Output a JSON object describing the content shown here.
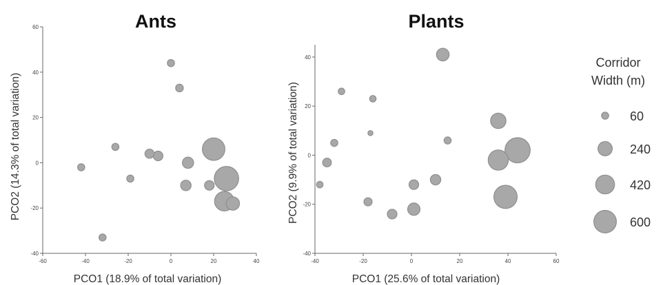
{
  "chart_data": [
    {
      "type": "scatter",
      "title": "Ants",
      "xlabel": "PCO1 (18.9% of total variation)",
      "ylabel": "PCO2 (14.3% of total variation)",
      "xlim": [
        -60,
        40
      ],
      "ylim": [
        -40,
        60
      ],
      "xticks": [
        "-60",
        "-40",
        "-20",
        "0",
        "20",
        "40"
      ],
      "yticks": [
        "-40",
        "-20",
        "0",
        "20",
        "40",
        "60"
      ],
      "points": [
        {
          "x": -42,
          "y": -2,
          "width": 60
        },
        {
          "x": -32,
          "y": -33,
          "width": 60
        },
        {
          "x": -26,
          "y": 7,
          "width": 60
        },
        {
          "x": -19,
          "y": -7,
          "width": 60
        },
        {
          "x": -10,
          "y": 4,
          "width": 100
        },
        {
          "x": -6,
          "y": 3,
          "width": 110
        },
        {
          "x": 0,
          "y": 44,
          "width": 60
        },
        {
          "x": 4,
          "y": 33,
          "width": 70
        },
        {
          "x": 7,
          "y": -10,
          "width": 130
        },
        {
          "x": 8,
          "y": 0,
          "width": 150
        },
        {
          "x": 18,
          "y": -10,
          "width": 110
        },
        {
          "x": 20,
          "y": 6,
          "width": 600
        },
        {
          "x": 26,
          "y": -7,
          "width": 700
        },
        {
          "x": 25,
          "y": -17,
          "width": 450
        },
        {
          "x": 29,
          "y": -18,
          "width": 210
        }
      ]
    },
    {
      "type": "scatter",
      "title": "Plants",
      "xlabel": "PCO1 (25.6% of total variation)",
      "ylabel": "PCO2 (9.9% of total variation)",
      "xlim": [
        -40,
        60
      ],
      "ylim": [
        -40,
        45
      ],
      "xticks": [
        "-40",
        "-20",
        "0",
        "20",
        "40",
        "60"
      ],
      "yticks": [
        "-40",
        "-20",
        "0",
        "20",
        "40"
      ],
      "points": [
        {
          "x": -38,
          "y": -12,
          "width": 50
        },
        {
          "x": -35,
          "y": -3,
          "width": 90
        },
        {
          "x": -32,
          "y": 5,
          "width": 60
        },
        {
          "x": -29,
          "y": 26,
          "width": 50
        },
        {
          "x": -16,
          "y": 23,
          "width": 50
        },
        {
          "x": -17,
          "y": 9,
          "width": 30
        },
        {
          "x": -18,
          "y": -19,
          "width": 80
        },
        {
          "x": -8,
          "y": -24,
          "width": 110
        },
        {
          "x": 1,
          "y": -12,
          "width": 110
        },
        {
          "x": 1,
          "y": -22,
          "width": 180
        },
        {
          "x": 10,
          "y": -10,
          "width": 130
        },
        {
          "x": 13,
          "y": 41,
          "width": 190
        },
        {
          "x": 15,
          "y": 6,
          "width": 60
        },
        {
          "x": 36,
          "y": 14,
          "width": 280
        },
        {
          "x": 36,
          "y": -2,
          "width": 480
        },
        {
          "x": 44,
          "y": 2,
          "width": 750
        },
        {
          "x": 39,
          "y": -17,
          "width": 640
        }
      ]
    }
  ],
  "legend": {
    "title_line1": "Corridor",
    "title_line2": "Width (m)",
    "entries": [
      {
        "label": "60",
        "width": 60
      },
      {
        "label": "240",
        "width": 240
      },
      {
        "label": "420",
        "width": 420
      },
      {
        "label": "600",
        "width": 600
      }
    ]
  },
  "colors": {
    "point_fill": "#a8a8a8",
    "point_stroke": "#8e8e8e",
    "axis": "#666666"
  }
}
